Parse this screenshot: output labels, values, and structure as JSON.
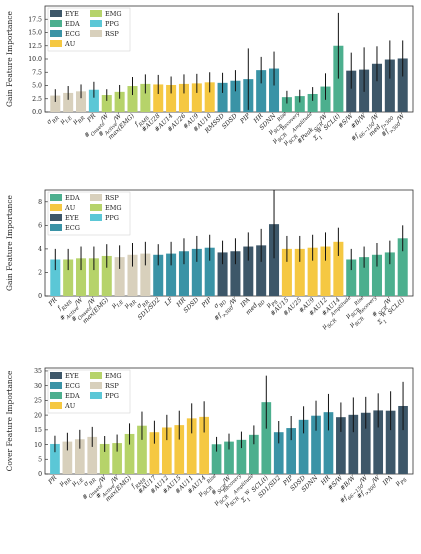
{
  "colors": {
    "EYE": "#3d5769",
    "EDA": "#4caf8e",
    "ECG": "#3a93a6",
    "AU": "#f5c842",
    "EMG": "#b6d36a",
    "PPG": "#5bc7d6",
    "RSP": "#d8d0bc"
  },
  "chart_data": [
    {
      "type": "bar",
      "ylabel": "Gain Feature Importance",
      "ylim": [
        0,
        20
      ],
      "yticks": [
        "0.0",
        "2.5",
        "5.0",
        "7.5",
        "10.0",
        "12.5",
        "15.0",
        "17.5"
      ],
      "ytick_values": [
        0,
        2.5,
        5,
        7.5,
        10,
        12.5,
        15,
        17.5
      ],
      "legend": [
        {
          "label": "EYE",
          "group": "EYE"
        },
        {
          "label": "EMG",
          "group": "EMG"
        },
        {
          "label": "EDA",
          "group": "EDA"
        },
        {
          "label": "PPG",
          "group": "PPG"
        },
        {
          "label": "ECG",
          "group": "ECG"
        },
        {
          "label": "RSP",
          "group": "RSP"
        },
        {
          "label": "AU",
          "group": "AU"
        }
      ],
      "legend_columns": 2,
      "bars": [
        {
          "label": "σ_RR",
          "group": "RSP",
          "value": 3.1,
          "err": 1.2
        },
        {
          "label": "μ_{I:E}",
          "group": "RSP",
          "value": 3.6,
          "err": 1.3
        },
        {
          "label": "μ_RR",
          "group": "RSP",
          "value": 3.9,
          "err": 1.3
        },
        {
          "label": "PR",
          "group": "PPG",
          "value": 4.2,
          "err": 1.5
        },
        {
          "label": "#_Onsets/W",
          "group": "EMG",
          "value": 3.2,
          "err": 1.1
        },
        {
          "label": "#_Active/W",
          "group": "EMG",
          "value": 3.8,
          "err": 1.3
        },
        {
          "label": "max(EMG)",
          "group": "EMG",
          "value": 4.9,
          "err": 1.7
        },
        {
          "label": "f_RMS",
          "group": "EMG",
          "value": 5.3,
          "err": 1.8
        },
        {
          "label": "#AU28",
          "group": "AU",
          "value": 5.2,
          "err": 1.8
        },
        {
          "label": "#AU14",
          "group": "AU",
          "value": 5.1,
          "err": 1.6
        },
        {
          "label": "#AU26",
          "group": "AU",
          "value": 5.3,
          "err": 1.8
        },
        {
          "label": "#AU9",
          "group": "AU",
          "value": 5.4,
          "err": 1.8
        },
        {
          "label": "#AU10",
          "group": "AU",
          "value": 5.6,
          "err": 1.9
        },
        {
          "label": "RMSSD",
          "group": "ECG",
          "value": 5.5,
          "err": 1.9
        },
        {
          "label": "SDSD",
          "group": "ECG",
          "value": 5.9,
          "err": 2.0
        },
        {
          "label": "PIP",
          "group": "ECG",
          "value": 6.2,
          "err": 5.8
        },
        {
          "label": "HR",
          "group": "ECG",
          "value": 7.9,
          "err": 2.5
        },
        {
          "label": "SDNN",
          "group": "ECG",
          "value": 8.2,
          "err": 3.2
        },
        {
          "label": "μ_SCR^Rise",
          "group": "EDA",
          "value": 2.8,
          "err": 1.2
        },
        {
          "label": "μ_SCR^Recovery",
          "group": "EDA",
          "value": 3.0,
          "err": 1.2
        },
        {
          "label": "μ_SCR^Amplitude",
          "group": "EDA",
          "value": 3.4,
          "err": 1.3
        },
        {
          "label": "#Peak_SCR/W",
          "group": "EDA",
          "value": 4.8,
          "err": 2.5
        },
        {
          "label": "Σ_1^W SCL(t)",
          "group": "EDA",
          "value": 12.5,
          "err": 6.2
        },
        {
          "label": "#S/W",
          "group": "EYE",
          "value": 7.8,
          "err": 3.4
        },
        {
          "label": "#B/W",
          "group": "EYE",
          "value": 8.0,
          "err": 4.2
        },
        {
          "label": "#f_{66−150}/W",
          "group": "EYE",
          "value": 9.1,
          "err": 3.3
        },
        {
          "label": "med_{f>300}",
          "group": "EYE",
          "value": 9.9,
          "err": 3.6
        },
        {
          "label": "#f_{>300}/W",
          "group": "EYE",
          "value": 10.1,
          "err": 3.4
        }
      ]
    },
    {
      "type": "bar",
      "ylabel": "Gain Feature Importance",
      "ylim": [
        0,
        9
      ],
      "yticks": [
        "0",
        "2",
        "4",
        "6",
        "8"
      ],
      "ytick_values": [
        0,
        2,
        4,
        6,
        8
      ],
      "legend": [
        {
          "label": "EDA",
          "group": "EDA"
        },
        {
          "label": "RSP",
          "group": "RSP"
        },
        {
          "label": "AU",
          "group": "AU"
        },
        {
          "label": "EMG",
          "group": "EMG"
        },
        {
          "label": "EYE",
          "group": "EYE"
        },
        {
          "label": "PPG",
          "group": "PPG"
        },
        {
          "label": "ECG",
          "group": "ECG"
        }
      ],
      "legend_columns": 2,
      "bars": [
        {
          "label": "PR",
          "group": "PPG",
          "value": 3.1,
          "err": 0.9
        },
        {
          "label": "f_RMS",
          "group": "EMG",
          "value": 3.1,
          "err": 0.9
        },
        {
          "label": "#_Active/W",
          "group": "EMG",
          "value": 3.2,
          "err": 1.0
        },
        {
          "label": "#_Onsets/W",
          "group": "EMG",
          "value": 3.2,
          "err": 1.0
        },
        {
          "label": "max(EMG)",
          "group": "EMG",
          "value": 3.4,
          "err": 1.0
        },
        {
          "label": "μ_{I:E}",
          "group": "RSP",
          "value": 3.3,
          "err": 1.0
        },
        {
          "label": "μ_RR",
          "group": "RSP",
          "value": 3.5,
          "err": 1.0
        },
        {
          "label": "σ_RR",
          "group": "RSP",
          "value": 3.6,
          "err": 1.0
        },
        {
          "label": "SD1/SD2",
          "group": "ECG",
          "value": 3.5,
          "err": 0.9
        },
        {
          "label": "LF",
          "group": "ECG",
          "value": 3.6,
          "err": 1.0
        },
        {
          "label": "HR",
          "group": "ECG",
          "value": 3.8,
          "err": 1.1
        },
        {
          "label": "SDSD",
          "group": "ECG",
          "value": 4.0,
          "err": 1.1
        },
        {
          "label": "PIP",
          "group": "ECG",
          "value": 4.1,
          "err": 1.1
        },
        {
          "label": "σ_BD",
          "group": "EYE",
          "value": 3.7,
          "err": 1.0
        },
        {
          "label": "#f_{>300}/W",
          "group": "EYE",
          "value": 3.8,
          "err": 1.1
        },
        {
          "label": "IPA",
          "group": "EYE",
          "value": 4.2,
          "err": 1.2
        },
        {
          "label": "med_BD",
          "group": "EYE",
          "value": 4.3,
          "err": 1.4
        },
        {
          "label": "μ_PS",
          "group": "EYE",
          "value": 6.1,
          "err": 2.9
        },
        {
          "label": "#AU15",
          "group": "AU",
          "value": 4.0,
          "err": 1.1
        },
        {
          "label": "#AU25",
          "group": "AU",
          "value": 4.0,
          "err": 1.1
        },
        {
          "label": "#AU9",
          "group": "AU",
          "value": 4.1,
          "err": 1.1
        },
        {
          "label": "#AU12",
          "group": "AU",
          "value": 4.2,
          "err": 1.2
        },
        {
          "label": "#AU14",
          "group": "AU",
          "value": 4.6,
          "err": 1.2
        },
        {
          "label": "μ_SCR^Amplitude",
          "group": "EDA",
          "value": 3.1,
          "err": 0.9
        },
        {
          "label": "μ_SCR^Rise",
          "group": "EDA",
          "value": 3.3,
          "err": 0.9
        },
        {
          "label": "μ_SCR^Recovery",
          "group": "EDA",
          "value": 3.5,
          "err": 1.0
        },
        {
          "label": "#_SCR/W",
          "group": "EDA",
          "value": 3.7,
          "err": 1.0
        },
        {
          "label": "Σ_1^W SCL(t)",
          "group": "EDA",
          "value": 4.9,
          "err": 1.1
        }
      ]
    },
    {
      "type": "bar",
      "ylabel": "Cover Feature Importance",
      "ylim": [
        0,
        36
      ],
      "yticks": [
        "0",
        "5",
        "10",
        "15",
        "20",
        "25",
        "30",
        "35"
      ],
      "ytick_values": [
        0,
        5,
        10,
        15,
        20,
        25,
        30,
        35
      ],
      "legend": [
        {
          "label": "EYE",
          "group": "EYE"
        },
        {
          "label": "EMG",
          "group": "EMG"
        },
        {
          "label": "ECG",
          "group": "ECG"
        },
        {
          "label": "RSP",
          "group": "RSP"
        },
        {
          "label": "EDA",
          "group": "EDA"
        },
        {
          "label": "PPG",
          "group": "PPG"
        },
        {
          "label": "AU",
          "group": "AU"
        }
      ],
      "legend_columns": 2,
      "bars": [
        {
          "label": "PR",
          "group": "PPG",
          "value": 10.2,
          "err": 2.8
        },
        {
          "label": "μ_RR",
          "group": "RSP",
          "value": 11.0,
          "err": 3.0
        },
        {
          "label": "μ_{I:E}",
          "group": "RSP",
          "value": 11.8,
          "err": 3.2
        },
        {
          "label": "σ_RR",
          "group": "RSP",
          "value": 12.6,
          "err": 3.4
        },
        {
          "label": "#_Onsets/W",
          "group": "EMG",
          "value": 10.2,
          "err": 2.7
        },
        {
          "label": "#_Active/W",
          "group": "EMG",
          "value": 10.5,
          "err": 2.9
        },
        {
          "label": "max(EMG)",
          "group": "EMG",
          "value": 13.6,
          "err": 3.6
        },
        {
          "label": "f_RMS",
          "group": "EMG",
          "value": 16.4,
          "err": 4.8
        },
        {
          "label": "#AU17",
          "group": "AU",
          "value": 14.2,
          "err": 3.9
        },
        {
          "label": "#AU12",
          "group": "AU",
          "value": 15.8,
          "err": 4.3
        },
        {
          "label": "#AU15",
          "group": "AU",
          "value": 16.6,
          "err": 4.9
        },
        {
          "label": "#AU11",
          "group": "AU",
          "value": 18.9,
          "err": 5.1
        },
        {
          "label": "#AU14",
          "group": "AU",
          "value": 19.4,
          "err": 5.3
        },
        {
          "label": "μ_SCR^Rise",
          "group": "EDA",
          "value": 10.1,
          "err": 2.5
        },
        {
          "label": "#_SCR/W",
          "group": "EDA",
          "value": 11.0,
          "err": 2.7
        },
        {
          "label": "μ_SCR^Recovery",
          "group": "EDA",
          "value": 11.6,
          "err": 2.8
        },
        {
          "label": "μ_SCR^Amplitude",
          "group": "EDA",
          "value": 13.3,
          "err": 3.2
        },
        {
          "label": "Σ_1^W SCL(t)",
          "group": "EDA",
          "value": 24.4,
          "err": 9.0
        },
        {
          "label": "SD1/SD2",
          "group": "ECG",
          "value": 14.2,
          "err": 3.8
        },
        {
          "label": "PIP",
          "group": "ECG",
          "value": 15.6,
          "err": 4.1
        },
        {
          "label": "SDSD",
          "group": "ECG",
          "value": 18.4,
          "err": 4.6
        },
        {
          "label": "SDNN",
          "group": "ECG",
          "value": 19.8,
          "err": 5.1
        },
        {
          "label": "HR",
          "group": "ECG",
          "value": 21.0,
          "err": 6.2
        },
        {
          "label": "#S/W",
          "group": "EYE",
          "value": 19.3,
          "err": 5.0
        },
        {
          "label": "#B/W",
          "group": "EYE",
          "value": 20.1,
          "err": 5.9
        },
        {
          "label": "#f_{66−150}/W",
          "group": "EYE",
          "value": 20.8,
          "err": 5.4
        },
        {
          "label": "#f_{>300}/W",
          "group": "EYE",
          "value": 21.6,
          "err": 5.8
        },
        {
          "label": "IPA",
          "group": "EYE",
          "value": 21.5,
          "err": 6.6
        },
        {
          "label": "μ_PS",
          "group": "EYE",
          "value": 23.1,
          "err": 8.2
        }
      ]
    }
  ]
}
